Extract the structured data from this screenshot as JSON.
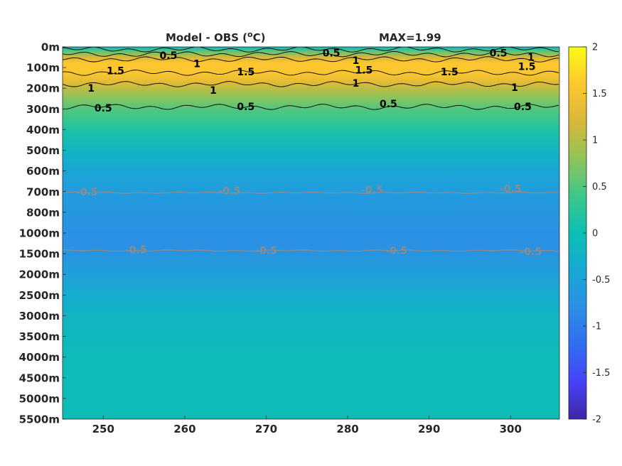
{
  "title_left": "Model - OBS (",
  "title_sup": "o",
  "title_unit": "C)",
  "title_right": "MAX=1.99",
  "chart_data": {
    "type": "heatmap",
    "xlim": [
      245,
      306
    ],
    "x_ticks": [
      250,
      260,
      270,
      280,
      290,
      300
    ],
    "x_tick_labels": [
      "250",
      "260",
      "270",
      "280",
      "290",
      "300"
    ],
    "depth_levels": [
      "0m",
      "100m",
      "200m",
      "300m",
      "400m",
      "500m",
      "600m",
      "700m",
      "800m",
      "1000m",
      "1500m",
      "2000m",
      "2500m",
      "3000m",
      "3500m",
      "4000m",
      "4500m",
      "5000m",
      "5500m"
    ],
    "y_tick_labels": [
      "0m",
      "100m",
      "200m",
      "300m",
      "400m",
      "500m",
      "600m",
      "700m",
      "800m",
      "1000m",
      "1500m",
      "2000m",
      "2500m",
      "3000m",
      "3500m",
      "4000m",
      "4500m",
      "5000m",
      "5500m"
    ],
    "profile_depth_index": [
      0,
      0.2,
      0.5,
      0.8,
      1.0,
      1.3,
      1.7,
      2.0,
      2.5,
      3.0,
      3.5,
      4,
      5,
      6,
      7,
      8,
      9,
      9.5,
      10,
      11,
      12,
      13,
      14,
      15,
      16,
      17,
      18
    ],
    "profile_values": [
      -0.2,
      0.5,
      1.2,
      1.6,
      1.6,
      1.55,
      1.3,
      1.05,
      0.75,
      0.5,
      0.35,
      0.15,
      -0.2,
      -0.45,
      -0.6,
      -0.7,
      -0.77,
      -0.78,
      -0.72,
      -0.55,
      -0.35,
      -0.2,
      -0.12,
      -0.08,
      -0.06,
      -0.05,
      -0.05
    ],
    "clim": [
      -2,
      2
    ],
    "colorbar_ticks": [
      2,
      1.5,
      1,
      0.5,
      0,
      -0.5,
      -1,
      -1.5,
      -2
    ],
    "colorbar_tick_labels": [
      "2",
      "1.5",
      "1",
      "0.5",
      "0",
      "-0.5",
      "-1",
      "-1.5",
      "-2"
    ],
    "colormap": [
      "#3e26a8",
      "#4743f8",
      "#2f6ff2",
      "#2b90e6",
      "#17a9d3",
      "#0bbfb3",
      "#3dc78a",
      "#8fc458",
      "#d9b737",
      "#fdc72f",
      "#f9fb14"
    ],
    "contour_levels": [
      0.5,
      1,
      1.5,
      -0.5
    ],
    "contours": [
      {
        "level": 0.5,
        "color": "#000000",
        "depth_index": 0.12
      },
      {
        "level": 1,
        "color": "#000000",
        "depth_index": 0.35
      },
      {
        "level": 1.5,
        "color": "#000000",
        "depth_index": 0.6
      },
      {
        "level": 1.5,
        "color": "#000000",
        "depth_index": 1.25
      },
      {
        "level": 1,
        "color": "#000000",
        "depth_index": 1.8
      },
      {
        "level": 0.5,
        "color": "#000000",
        "depth_index": 2.9
      },
      {
        "level": -0.5,
        "color": "#8c8c8c",
        "depth_index": 7.05
      },
      {
        "level": -0.5,
        "color": "#8c8c8c",
        "depth_index": 9.85
      }
    ],
    "contour_labels": [
      {
        "text": "0.5",
        "x": 258,
        "depth_index": 0.42,
        "color": "#000000"
      },
      {
        "text": "1",
        "x": 261.5,
        "depth_index": 0.8,
        "color": "#000000"
      },
      {
        "text": "1.5",
        "x": 251.5,
        "depth_index": 1.15,
        "color": "#000000"
      },
      {
        "text": "1",
        "x": 248.5,
        "depth_index": 2.0,
        "color": "#000000"
      },
      {
        "text": "1",
        "x": 263.5,
        "depth_index": 2.1,
        "color": "#000000"
      },
      {
        "text": "0.5",
        "x": 250,
        "depth_index": 2.95,
        "color": "#000000"
      },
      {
        "text": "1.5",
        "x": 267.5,
        "depth_index": 1.2,
        "color": "#000000"
      },
      {
        "text": "0.5",
        "x": 267.5,
        "depth_index": 2.88,
        "color": "#000000"
      },
      {
        "text": "0.5",
        "x": 278,
        "depth_index": 0.3,
        "color": "#000000"
      },
      {
        "text": "1",
        "x": 281,
        "depth_index": 0.65,
        "color": "#000000"
      },
      {
        "text": "1.5",
        "x": 282,
        "depth_index": 1.12,
        "color": "#000000"
      },
      {
        "text": "1",
        "x": 281,
        "depth_index": 1.75,
        "color": "#000000"
      },
      {
        "text": "0.5",
        "x": 285,
        "depth_index": 2.75,
        "color": "#000000"
      },
      {
        "text": "1.5",
        "x": 292.5,
        "depth_index": 1.2,
        "color": "#000000"
      },
      {
        "text": "0.5",
        "x": 298.5,
        "depth_index": 0.3,
        "color": "#000000"
      },
      {
        "text": "1",
        "x": 302.5,
        "depth_index": 0.5,
        "color": "#000000"
      },
      {
        "text": "1.5",
        "x": 302,
        "depth_index": 0.95,
        "color": "#000000"
      },
      {
        "text": "1",
        "x": 300.5,
        "depth_index": 1.95,
        "color": "#000000"
      },
      {
        "text": "0.5",
        "x": 301.5,
        "depth_index": 2.88,
        "color": "#000000"
      },
      {
        "text": "-0.5",
        "x": 248,
        "depth_index": 7.0,
        "color": "#8c8c8c"
      },
      {
        "text": "-0.5",
        "x": 265.5,
        "depth_index": 6.95,
        "color": "#8c8c8c"
      },
      {
        "text": "-0.5",
        "x": 283,
        "depth_index": 6.9,
        "color": "#8c8c8c"
      },
      {
        "text": "-0.5",
        "x": 300,
        "depth_index": 6.85,
        "color": "#8c8c8c"
      },
      {
        "text": "-0.5",
        "x": 254,
        "depth_index": 9.8,
        "color": "#8c8c8c"
      },
      {
        "text": "-0.5",
        "x": 270,
        "depth_index": 9.85,
        "color": "#8c8c8c"
      },
      {
        "text": "-0.5",
        "x": 286,
        "depth_index": 9.85,
        "color": "#8c8c8c"
      },
      {
        "text": "-0.5",
        "x": 302.5,
        "depth_index": 9.9,
        "color": "#8c8c8c"
      }
    ]
  }
}
